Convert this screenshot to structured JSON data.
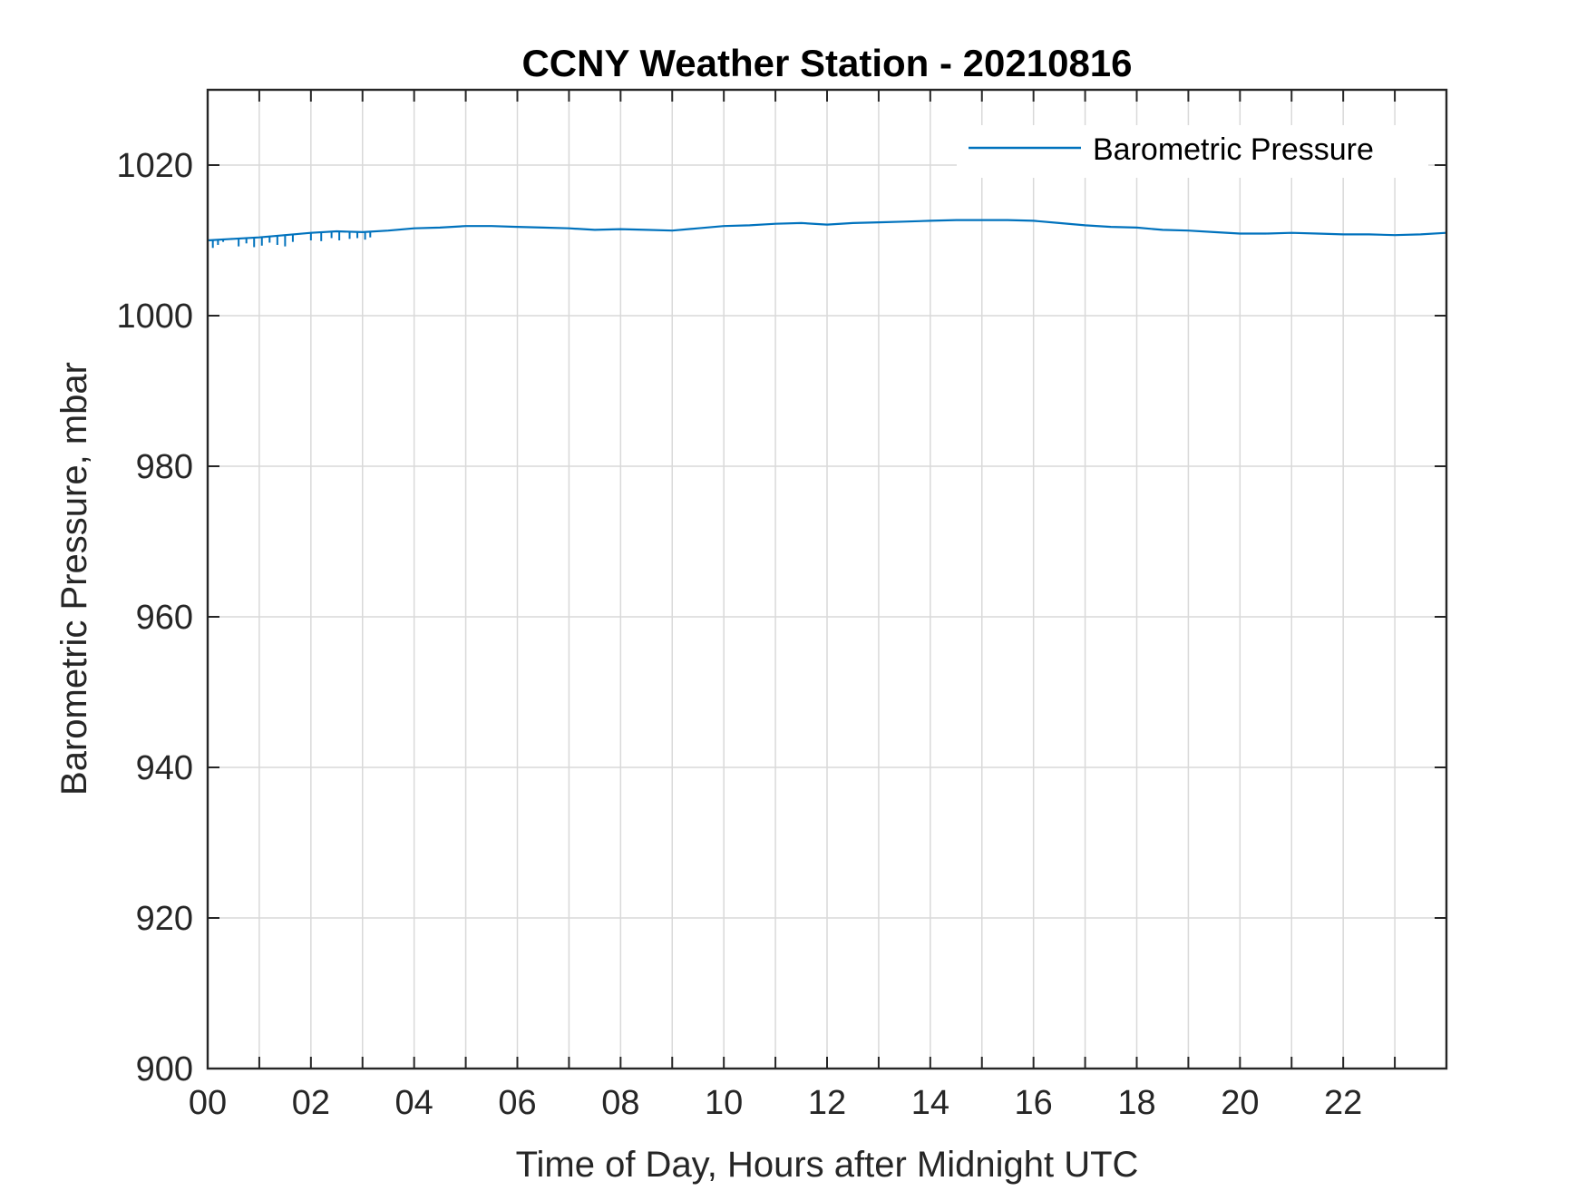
{
  "chart_data": {
    "type": "line",
    "title": "CCNY Weather Station - 20210816",
    "xlabel": "Time of Day, Hours after Midnight UTC",
    "ylabel": "Barometric Pressure, mbar",
    "xlim": [
      0,
      24
    ],
    "ylim": [
      900,
      1030
    ],
    "xticks": [
      0,
      2,
      4,
      6,
      8,
      10,
      12,
      14,
      16,
      18,
      20,
      22
    ],
    "xtick_labels": [
      "00",
      "02",
      "04",
      "06",
      "08",
      "10",
      "12",
      "14",
      "16",
      "18",
      "20",
      "22"
    ],
    "xgrid_step_hours": 1,
    "yticks": [
      900,
      920,
      940,
      960,
      980,
      1000,
      1020
    ],
    "ytick_labels": [
      "900",
      "920",
      "940",
      "960",
      "980",
      "1000",
      "1020"
    ],
    "grid": true,
    "legend_position": "top-right",
    "series": [
      {
        "name": "Barometric Pressure",
        "color": "#0072BD",
        "x": [
          0,
          0.5,
          1,
          1.5,
          2,
          2.5,
          3,
          3.5,
          4,
          4.5,
          5,
          5.5,
          6,
          6.5,
          7,
          7.5,
          8,
          8.5,
          9,
          9.5,
          10,
          10.5,
          11,
          11.5,
          12,
          12.5,
          13,
          13.5,
          14,
          14.5,
          15,
          15.5,
          16,
          16.5,
          17,
          17.5,
          18,
          18.5,
          19,
          19.5,
          20,
          20.5,
          21,
          21.5,
          22,
          22.5,
          23,
          23.5,
          24
        ],
        "values": [
          1010.0,
          1010.2,
          1010.4,
          1010.7,
          1011.0,
          1011.2,
          1011.1,
          1011.3,
          1011.6,
          1011.7,
          1011.9,
          1011.9,
          1011.8,
          1011.7,
          1011.6,
          1011.4,
          1011.5,
          1011.4,
          1011.3,
          1011.6,
          1011.9,
          1012.0,
          1012.2,
          1012.3,
          1012.1,
          1012.3,
          1012.4,
          1012.5,
          1012.6,
          1012.7,
          1012.7,
          1012.7,
          1012.6,
          1012.3,
          1012.0,
          1011.8,
          1011.7,
          1011.4,
          1011.3,
          1011.1,
          1010.9,
          1010.9,
          1011.0,
          1010.9,
          1010.8,
          1010.8,
          1010.7,
          1010.8,
          1011.0
        ]
      }
    ],
    "noise_spikes": [
      {
        "x": 0.1,
        "low": 1009.0
      },
      {
        "x": 0.2,
        "low": 1009.4
      },
      {
        "x": 0.3,
        "low": 1009.8
      },
      {
        "x": 0.6,
        "low": 1009.2
      },
      {
        "x": 0.75,
        "low": 1009.6
      },
      {
        "x": 0.9,
        "low": 1009.1
      },
      {
        "x": 1.05,
        "low": 1009.3
      },
      {
        "x": 1.2,
        "low": 1009.7
      },
      {
        "x": 1.35,
        "low": 1009.4
      },
      {
        "x": 1.5,
        "low": 1009.2
      },
      {
        "x": 1.65,
        "low": 1009.8
      },
      {
        "x": 2.0,
        "low": 1010.0
      },
      {
        "x": 2.2,
        "low": 1009.9
      },
      {
        "x": 2.4,
        "low": 1010.3
      },
      {
        "x": 2.55,
        "low": 1010.0
      },
      {
        "x": 2.75,
        "low": 1010.2
      },
      {
        "x": 2.9,
        "low": 1010.3
      },
      {
        "x": 3.05,
        "low": 1010.1
      },
      {
        "x": 3.15,
        "low": 1010.4
      }
    ]
  }
}
